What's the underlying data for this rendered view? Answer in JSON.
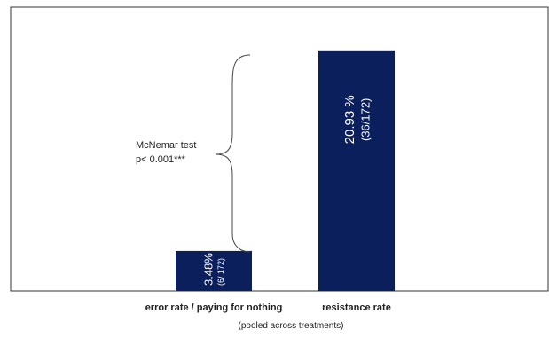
{
  "chart_data": {
    "type": "bar",
    "categories": [
      "error rate / paying for nothing",
      "resistance rate"
    ],
    "values": [
      3.48,
      20.93
    ],
    "bar_labels": [
      {
        "main": "3.48%",
        "sub": "(6/ 172)"
      },
      {
        "main": "20.93 %",
        "sub": "(36/172)"
      }
    ],
    "xlabel": "(pooled across treatments)",
    "ylim": [
      0,
      23
    ],
    "bar_color": "#0b1f5c",
    "annotation": {
      "line1": "McNemar test",
      "line2": "p< 0.001***"
    }
  }
}
